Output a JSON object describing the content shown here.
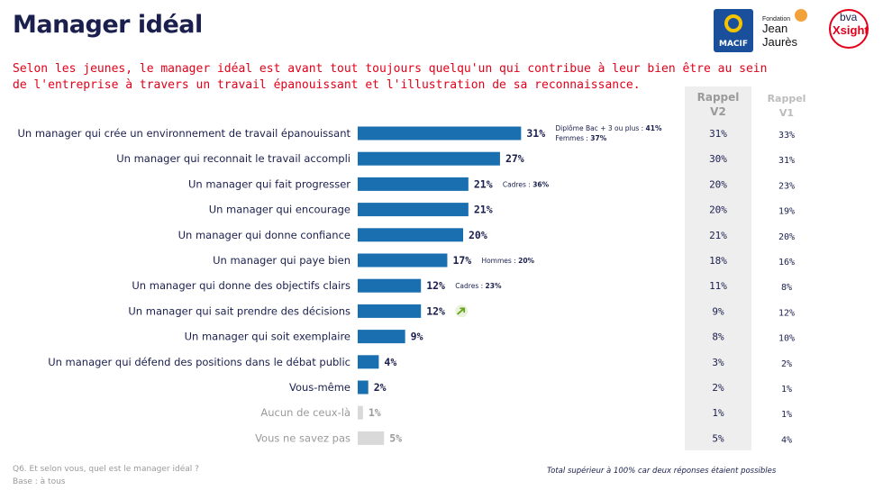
{
  "header": {
    "title": "Manager idéal",
    "subtitle": "Selon les jeunes, le manager idéal est avant tout toujours quelqu'un qui contribue à leur bien être au sein de l'entreprise à travers un travail épanouissant et l'illustration de sa reconnaissance."
  },
  "logos": {
    "macif": "MACIF",
    "jaures_small": "Fondation",
    "jaures_name": "Jean Jaurès",
    "bva_top": "bva",
    "bva_bottom": "Xsight"
  },
  "columns": {
    "rappel_v2": "Rappel V2",
    "rappel_v1": "Rappel V1"
  },
  "chart_data": {
    "type": "bar",
    "orientation": "horizontal",
    "categories": [
      "Un manager qui crée un environnement de travail épanouissant",
      "Un manager qui reconnait le travail accompli",
      "Un manager qui fait progresser",
      "Un manager qui encourage",
      "Un manager qui donne confiance",
      "Un manager qui paye bien",
      "Un manager qui donne des objectifs clairs",
      "Un manager qui sait prendre des décisions",
      "Un manager qui soit exemplaire",
      "Un manager qui défend des positions dans le débat public",
      "Vous-même",
      "Aucun de ceux-là",
      "Vous ne savez pas"
    ],
    "values": [
      31,
      27,
      21,
      21,
      20,
      17,
      12,
      12,
      9,
      4,
      2,
      1,
      5
    ],
    "value_labels": [
      "31%",
      "27%",
      "21%",
      "21%",
      "20%",
      "17%",
      "12%",
      "12%",
      "9%",
      "4%",
      "2%",
      "1%",
      "5%"
    ],
    "muted": [
      false,
      false,
      false,
      false,
      false,
      false,
      false,
      false,
      false,
      false,
      false,
      true,
      true
    ],
    "annotations": [
      {
        "index": 0,
        "lines": [
          {
            "text": "Diplôme Bac + 3 ou plus : ",
            "bold": "41%"
          },
          {
            "text": "Femmes : ",
            "bold": "37%"
          }
        ]
      },
      {
        "index": 2,
        "lines": [
          {
            "text": "Cadres : ",
            "bold": "36%"
          }
        ]
      },
      {
        "index": 5,
        "lines": [
          {
            "text": "Hommes : ",
            "bold": "20%"
          }
        ]
      },
      {
        "index": 6,
        "lines": [
          {
            "text": "Cadres : ",
            "bold": "23%"
          }
        ]
      }
    ],
    "trend_up_index": 7,
    "rappel_v2": [
      "31%",
      "30%",
      "20%",
      "20%",
      "21%",
      "18%",
      "11%",
      "9%",
      "8%",
      "3%",
      "2%",
      "1%",
      "5%"
    ],
    "rappel_v1": [
      "33%",
      "31%",
      "23%",
      "19%",
      "20%",
      "16%",
      "8%",
      "12%",
      "10%",
      "2%",
      "1%",
      "1%",
      "4%"
    ],
    "colors": {
      "bar": "#1a6fb0",
      "bar_muted": "#d9d9d9",
      "label": "#1a1f4d",
      "label_muted": "#9a9a9a",
      "trend": "#6aa41e"
    }
  },
  "footer": {
    "question": "Q6. Et selon vous, quel est le manager idéal ?",
    "base": "Base : à tous",
    "note": "Total supérieur à 100% car deux réponses étaient possibles"
  }
}
